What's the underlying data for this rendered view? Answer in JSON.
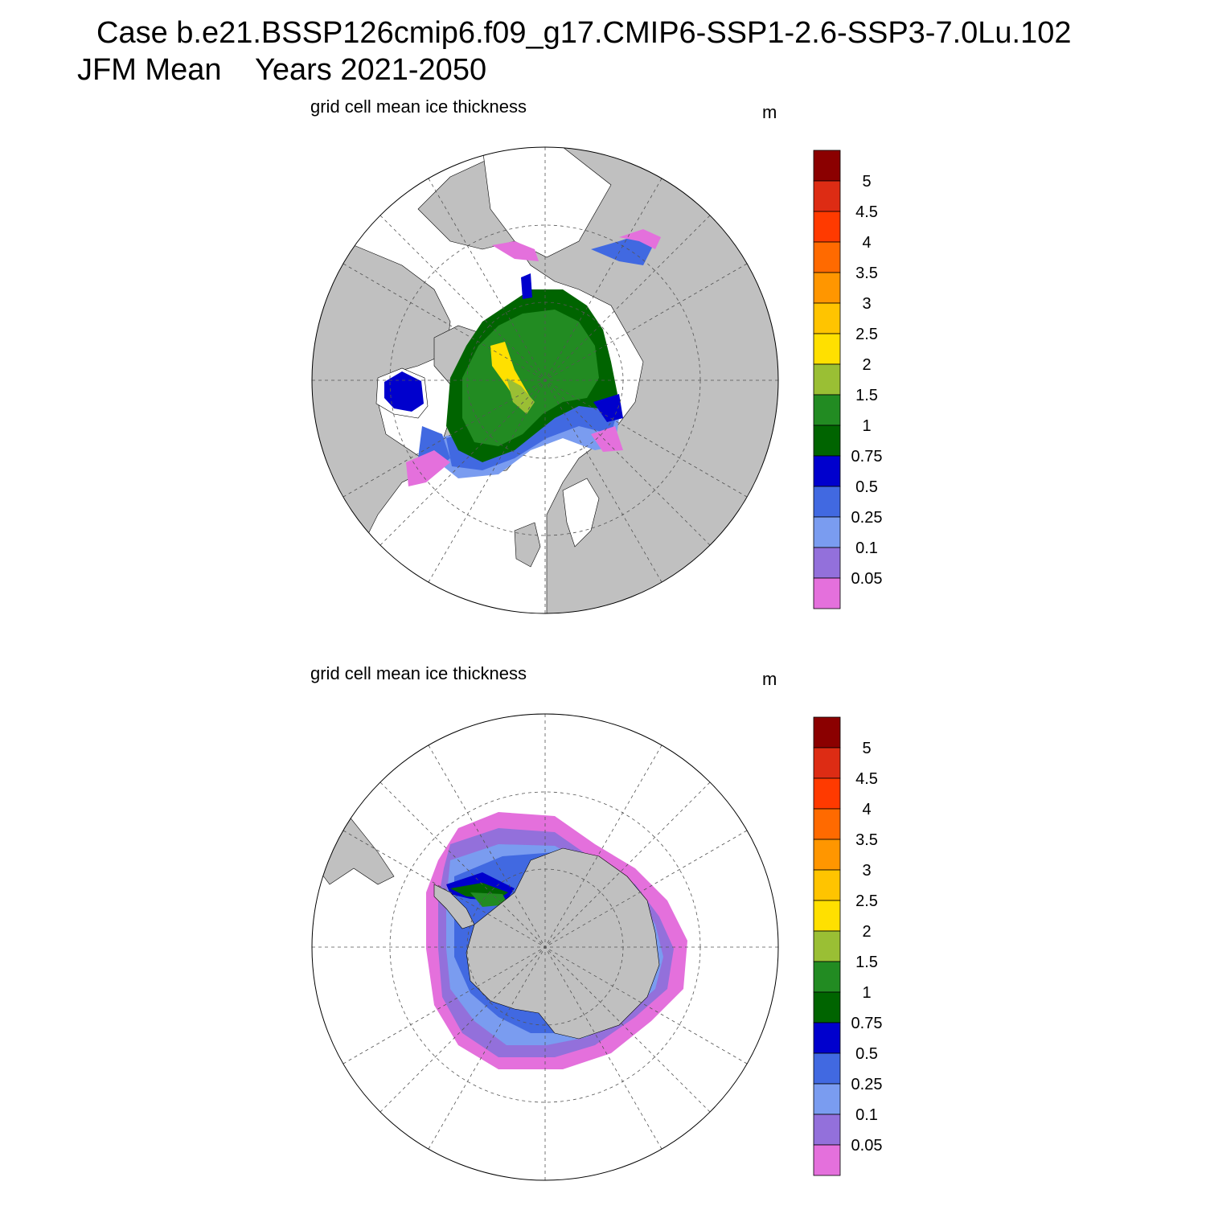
{
  "header": {
    "title_line1": "Case b.e21.BSSP126cmip6.f09_g17.CMIP6-SSP1-2.6-SSP3-7.0Lu.102",
    "title_line2": "JFM Mean    Years 2021-2050"
  },
  "panels": [
    {
      "subtitle": "grid cell mean ice thickness",
      "units": "m",
      "hemisphere": "north"
    },
    {
      "subtitle": "grid cell mean ice thickness",
      "units": "m",
      "hemisphere": "south"
    }
  ],
  "colorbar": {
    "labels": [
      "5",
      "4.5",
      "4",
      "3.5",
      "3",
      "2.5",
      "2",
      "1.5",
      "1",
      "0.75",
      "0.5",
      "0.25",
      "0.1",
      "0.05"
    ],
    "colors_top_to_bottom": [
      "#8b0000",
      "#dd2c14",
      "#ff3a00",
      "#ff6a00",
      "#ff9600",
      "#ffc400",
      "#ffe000",
      "#9abf34",
      "#228b22",
      "#006400",
      "#0000cd",
      "#4169e1",
      "#7a9cf0",
      "#9370db",
      "#e470dc"
    ]
  },
  "colors": {
    "land": "#c0c0c0",
    "ocean": "#ffffff",
    "grid": "#555555"
  }
}
